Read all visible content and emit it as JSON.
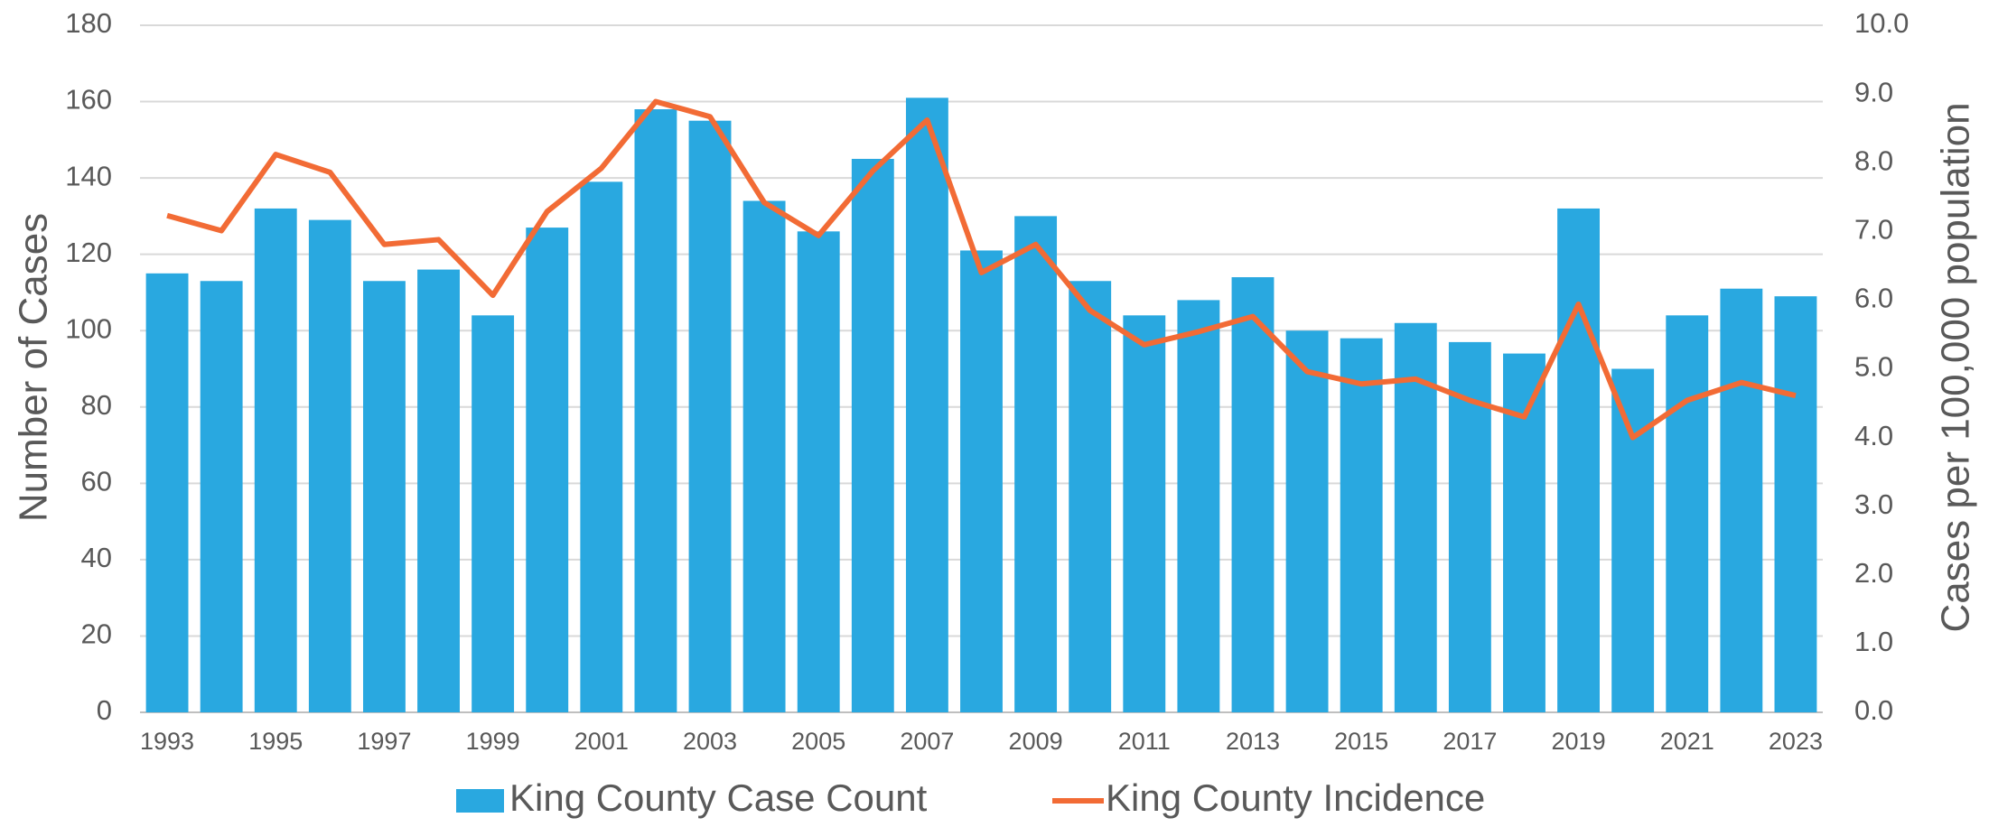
{
  "chart_data": {
    "type": "bar",
    "categories": [
      "1993",
      null,
      "1995",
      null,
      "1997",
      null,
      "1999",
      null,
      "2001",
      null,
      "2003",
      null,
      "2005",
      null,
      "2007",
      null,
      "2009",
      null,
      "2011",
      null,
      "2013",
      null,
      "2015",
      null,
      "2017",
      null,
      "2019",
      null,
      "2021",
      null,
      "2023"
    ],
    "series": [
      {
        "name": "King County Case Count",
        "type": "bar",
        "color": "#29a8e0",
        "values": [
          115,
          113,
          132,
          129,
          113,
          116,
          104,
          127,
          139,
          158,
          155,
          134,
          126,
          145,
          161,
          121,
          130,
          113,
          104,
          108,
          114,
          100,
          98,
          102,
          97,
          94,
          132,
          90,
          104,
          111,
          109
        ]
      },
      {
        "name": "King County Incidence",
        "type": "line",
        "axis": "y2",
        "color": "#f26b35",
        "values": [
          7.23,
          7.01,
          8.12,
          7.86,
          6.81,
          6.88,
          6.07,
          7.29,
          7.92,
          8.89,
          8.67,
          7.42,
          6.94,
          7.88,
          8.62,
          6.4,
          6.81,
          5.85,
          5.35,
          5.54,
          5.76,
          4.96,
          4.78,
          4.85,
          4.54,
          4.3,
          5.94,
          4.0,
          4.54,
          4.8,
          4.61
        ]
      }
    ],
    "ylabel": "Number of Cases",
    "y2label": "Cases per 100,000 population",
    "ylim": [
      0,
      180
    ],
    "yticks": [
      0,
      20,
      40,
      60,
      80,
      100,
      120,
      140,
      160,
      180
    ],
    "y2lim": [
      0,
      10
    ],
    "y2ticks": [
      {
        "value": 0,
        "label": "0.0"
      },
      {
        "value": 1,
        "label": "1.0"
      },
      {
        "value": 2,
        "label": "2.0"
      },
      {
        "value": 3,
        "label": "3.0"
      },
      {
        "value": 4,
        "label": "4.0"
      },
      {
        "value": 5,
        "label": "5.0"
      },
      {
        "value": 6,
        "label": "6.0"
      },
      {
        "value": 7,
        "label": "7.0"
      },
      {
        "value": 8,
        "label": "8.0"
      },
      {
        "value": 9,
        "label": "9.0"
      },
      {
        "value": 10,
        "label": "10.0"
      }
    ],
    "grid": true,
    "legend": "bottom"
  }
}
